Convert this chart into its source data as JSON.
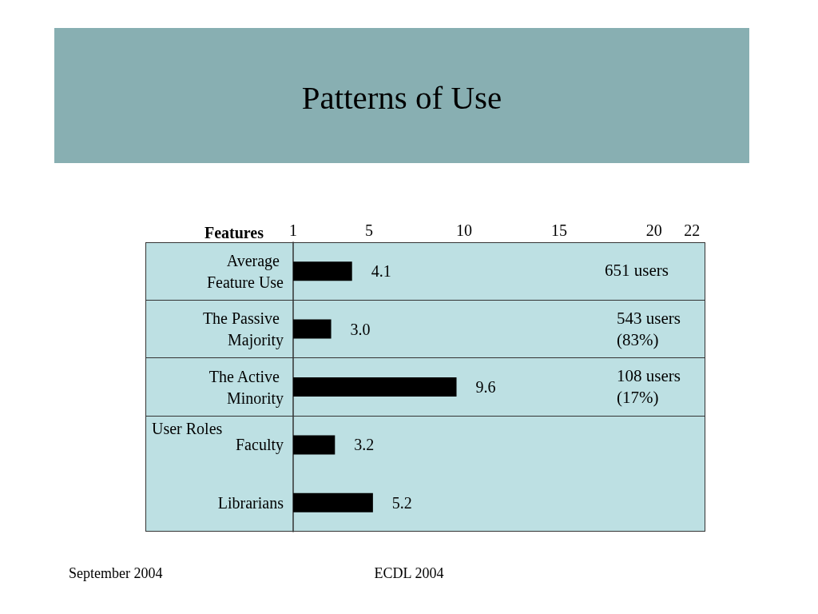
{
  "chart_data": {
    "type": "bar",
    "orientation": "horizontal",
    "title": "Patterns of Use",
    "xlabel": "Features",
    "categories": [
      "Average Feature Use",
      "The Passive Majority",
      "The Active Minority",
      "Faculty",
      "Librarians"
    ],
    "values": [
      4.1,
      3.0,
      9.6,
      3.2,
      5.2
    ],
    "value_labels": [
      "4.1",
      "3.0",
      "9.6",
      "3.2",
      "5.2"
    ],
    "color": "#000000",
    "xlim": [
      1,
      22.7
    ],
    "xticks": [
      1,
      5,
      10,
      15,
      20,
      22
    ],
    "grid": "y",
    "annotations": [
      "651 users",
      "543 users (83%)",
      "108 users (17%)",
      "User Roles",
      "September 2004",
      "ECDL 2004"
    ]
  }
}
